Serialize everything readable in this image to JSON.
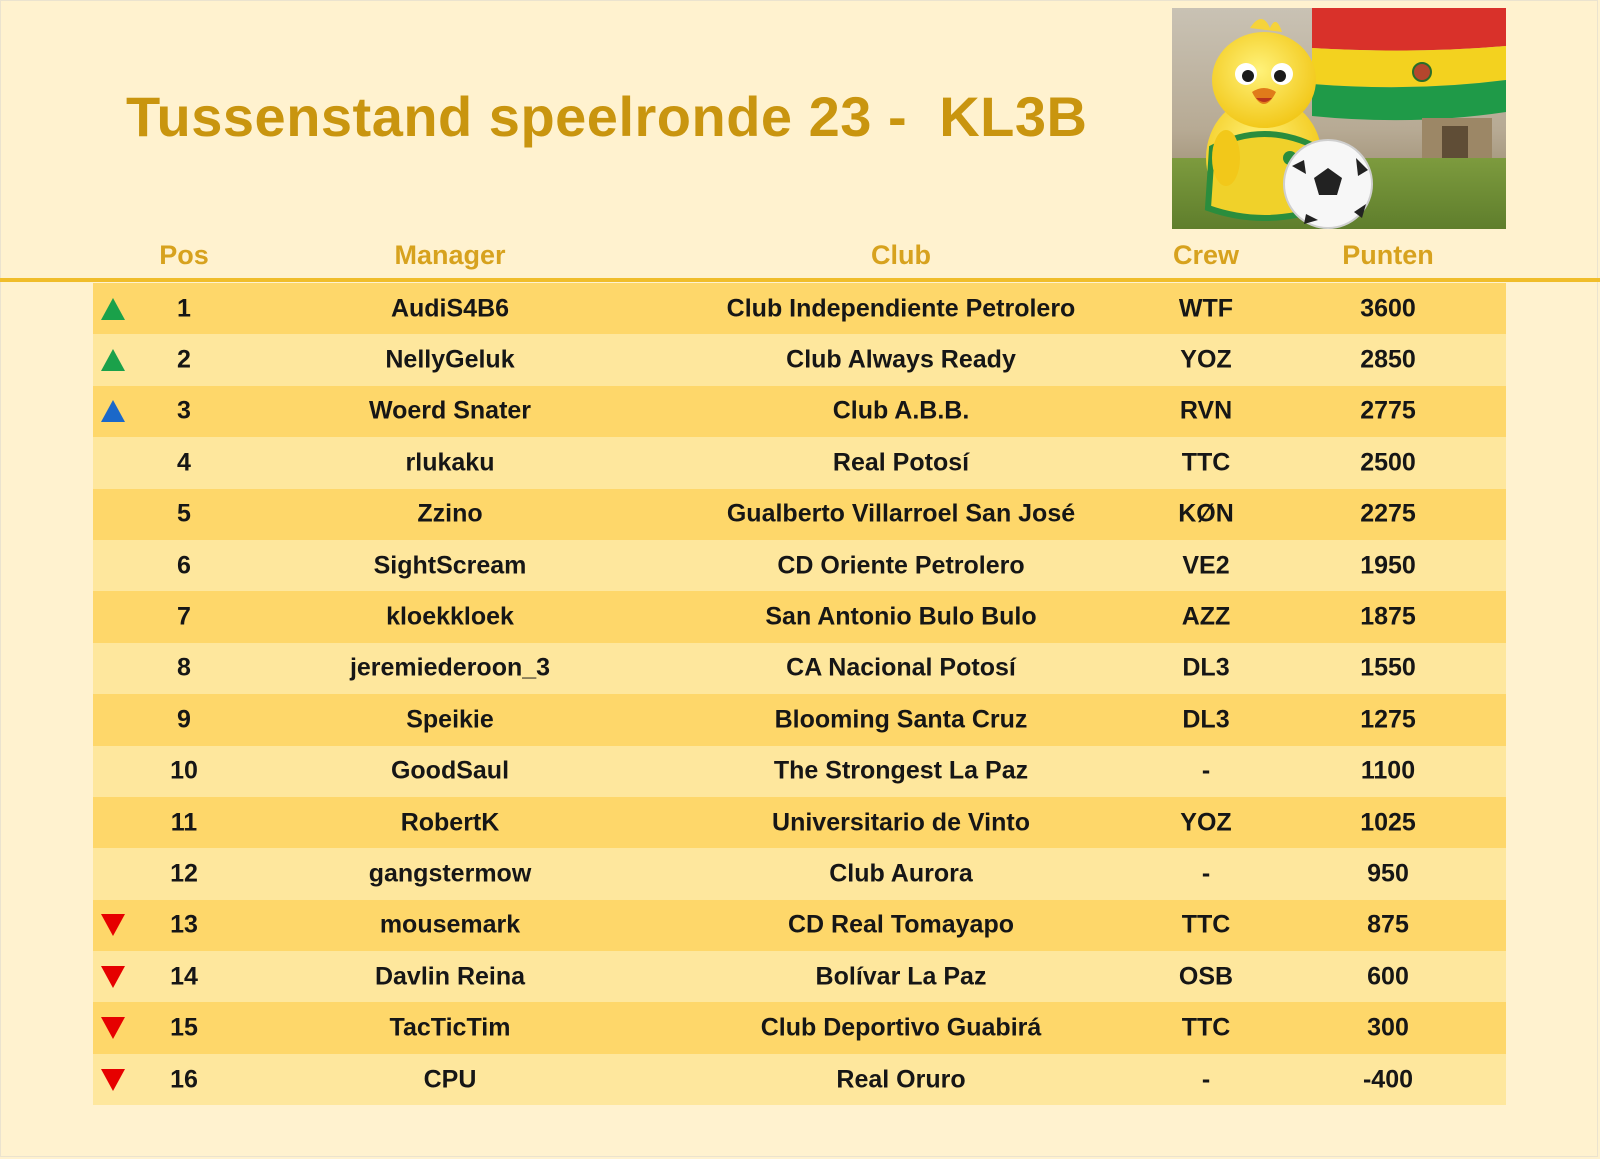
{
  "title": "Tussenstand speelronde 23 -  KL3B",
  "columns": {
    "pos": "Pos",
    "manager": "Manager",
    "club": "Club",
    "crew": "Crew",
    "punten": "Punten"
  },
  "colors": {
    "up_green": "#1aa14a",
    "up_blue": "#1b68c9",
    "down_red": "#e60000",
    "title": "#c9950f",
    "row_dark": "#fed76a",
    "row_light": "#fee79d"
  },
  "rows": [
    {
      "pos": "1",
      "manager": "AudiS4B6",
      "club": "Club Independiente Petrolero",
      "crew": "WTF",
      "punten": "3600",
      "trend": "up-green"
    },
    {
      "pos": "2",
      "manager": "NellyGeluk",
      "club": "Club Always Ready",
      "crew": "YOZ",
      "punten": "2850",
      "trend": "up-green"
    },
    {
      "pos": "3",
      "manager": "Woerd Snater",
      "club": "Club A.B.B.",
      "crew": "RVN",
      "punten": "2775",
      "trend": "up-blue"
    },
    {
      "pos": "4",
      "manager": "rlukaku",
      "club": "Real Potosí",
      "crew": "TTC",
      "punten": "2500",
      "trend": ""
    },
    {
      "pos": "5",
      "manager": "Zzino",
      "club": "Gualberto Villarroel San José",
      "crew": "KØN",
      "punten": "2275",
      "trend": ""
    },
    {
      "pos": "6",
      "manager": "SightScream",
      "club": "CD Oriente Petrolero",
      "crew": "VE2",
      "punten": "1950",
      "trend": ""
    },
    {
      "pos": "7",
      "manager": "kloekkloek",
      "club": "San Antonio Bulo Bulo",
      "crew": "AZZ",
      "punten": "1875",
      "trend": ""
    },
    {
      "pos": "8",
      "manager": "jeremiederoon_3",
      "club": "CA Nacional Potosí",
      "crew": "DL3",
      "punten": "1550",
      "trend": ""
    },
    {
      "pos": "9",
      "manager": "Speikie",
      "club": "Blooming Santa Cruz",
      "crew": "DL3",
      "punten": "1275",
      "trend": ""
    },
    {
      "pos": "10",
      "manager": "GoodSaul",
      "club": "The Strongest La Paz",
      "crew": "-",
      "punten": "1100",
      "trend": ""
    },
    {
      "pos": "11",
      "manager": "RobertK",
      "club": "Universitario de Vinto",
      "crew": "YOZ",
      "punten": "1025",
      "trend": ""
    },
    {
      "pos": "12",
      "manager": "gangstermow",
      "club": "Club Aurora",
      "crew": "-",
      "punten": "950",
      "trend": ""
    },
    {
      "pos": "13",
      "manager": "mousemark",
      "club": "CD Real Tomayapo",
      "crew": "TTC",
      "punten": "875",
      "trend": "down-red"
    },
    {
      "pos": "14",
      "manager": "Davlin Reina",
      "club": "Bolívar La Paz",
      "crew": "OSB",
      "punten": "600",
      "trend": "down-red"
    },
    {
      "pos": "15",
      "manager": "TacTicTim",
      "club": "Club Deportivo Guabirá",
      "crew": "TTC",
      "punten": "300",
      "trend": "down-red"
    },
    {
      "pos": "16",
      "manager": "CPU",
      "club": "Real Oruro",
      "crew": "-",
      "punten": "-400",
      "trend": "down-red"
    }
  ],
  "illustration": "canary-mascot-with-football-and-flag"
}
